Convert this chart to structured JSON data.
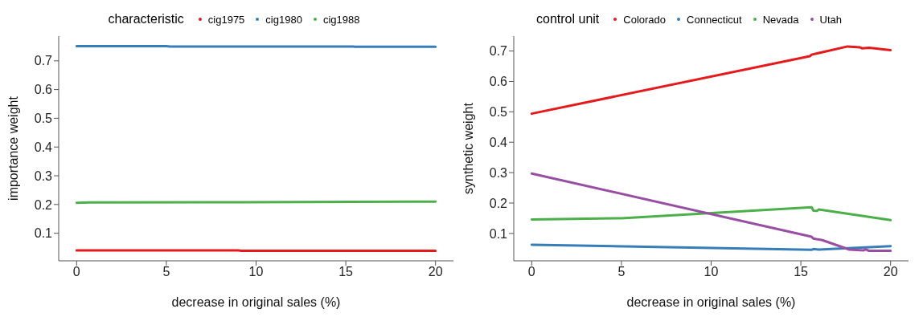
{
  "chart_data": [
    {
      "type": "line",
      "xlabel": "decrease in original sales (%)",
      "ylabel": "importance weight",
      "legend_title": "characteristic",
      "legend": "top",
      "grid": false,
      "marker": "none",
      "line_style": "solid",
      "xlim": [
        -1,
        21
      ],
      "xticks": [
        0,
        5,
        10,
        15,
        20
      ],
      "ylim": [
        0.004,
        0.786
      ],
      "yticks": [
        0.1,
        0.2,
        0.3,
        0.4,
        0.5,
        0.6,
        0.7
      ],
      "series": [
        {
          "name": "cig1975",
          "color": "#e41a1c",
          "x": [
            0,
            9,
            9.2,
            20
          ],
          "values": [
            0.04,
            0.04,
            0.039,
            0.039
          ]
        },
        {
          "name": "cig1980",
          "color": "#377eb8",
          "x": [
            0,
            5,
            5.2,
            15.4,
            15.5,
            20
          ],
          "values": [
            0.751,
            0.751,
            0.75,
            0.75,
            0.749,
            0.749
          ]
        },
        {
          "name": "cig1988",
          "color": "#4daf4a",
          "x": [
            0,
            0.7,
            9.2,
            15.2,
            20
          ],
          "values": [
            0.206,
            0.207,
            0.208,
            0.209,
            0.21
          ]
        }
      ]
    },
    {
      "type": "line",
      "xlabel": "decrease in original sales (%)",
      "ylabel": "synthetic weight",
      "legend_title": "control unit",
      "legend": "top",
      "grid": false,
      "marker": "none",
      "line_style": "solid",
      "xlim": [
        -1,
        21
      ],
      "xticks": [
        0,
        5,
        10,
        15,
        20
      ],
      "ylim": [
        0.01,
        0.749
      ],
      "yticks": [
        0.1,
        0.2,
        0.3,
        0.4,
        0.5,
        0.6,
        0.7
      ],
      "series": [
        {
          "name": "Colorado",
          "color": "#e41a1c",
          "x": [
            0,
            15.5,
            15.6,
            17.6,
            18.3,
            18.4,
            18.8,
            20
          ],
          "values": [
            0.494,
            0.683,
            0.688,
            0.715,
            0.712,
            0.709,
            0.711,
            0.703
          ]
        },
        {
          "name": "Connecticut",
          "color": "#377eb8",
          "x": [
            0,
            15.6,
            15.7,
            16,
            20
          ],
          "values": [
            0.063,
            0.046,
            0.049,
            0.047,
            0.058
          ]
        },
        {
          "name": "Nevada",
          "color": "#4daf4a",
          "x": [
            0,
            5,
            15.6,
            15.7,
            15.9,
            16,
            20
          ],
          "values": [
            0.146,
            0.15,
            0.186,
            0.175,
            0.174,
            0.179,
            0.144
          ]
        },
        {
          "name": "Utah",
          "color": "#984ea3",
          "x": [
            0,
            15.6,
            15.7,
            16.2,
            17.7,
            18.5,
            18.6,
            18.8,
            20
          ],
          "values": [
            0.297,
            0.089,
            0.083,
            0.078,
            0.047,
            0.044,
            0.048,
            0.043,
            0.043
          ]
        }
      ]
    }
  ]
}
